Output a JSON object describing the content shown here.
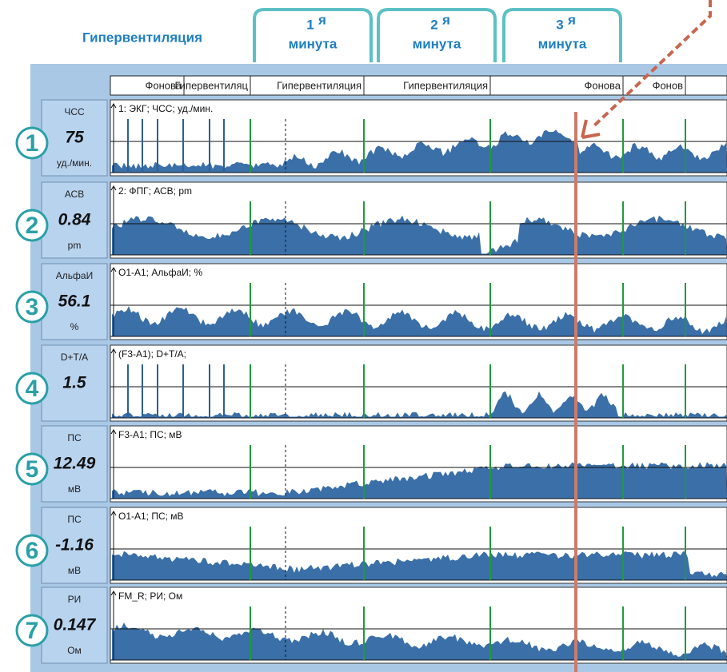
{
  "header": {
    "title": "Гипервентиляция"
  },
  "tabs": [
    {
      "number": "1",
      "suffix": "я",
      "label": "минута"
    },
    {
      "number": "2",
      "suffix": "я",
      "label": "минута"
    },
    {
      "number": "3",
      "suffix": "я",
      "label": "минута"
    }
  ],
  "columns": [
    "Фонова",
    "Гипервентиляц",
    "Гипервентиляция",
    "Гипервентиляция",
    "Фонова",
    "Фонов"
  ],
  "channels": [
    {
      "index": "1",
      "name": "ЧСС",
      "value": "75",
      "unit": "уд./мин.",
      "trace_label": "1: ЭКГ; ЧСС; уд./мин."
    },
    {
      "index": "2",
      "name": "АСВ",
      "value": "0.84",
      "unit": "pm",
      "trace_label": "2: ФПГ; АСВ; pm"
    },
    {
      "index": "3",
      "name": "АльфаИ",
      "value": "56.1",
      "unit": "%",
      "trace_label": "O1-A1; АльфаИ; %"
    },
    {
      "index": "4",
      "name": "D+T/A",
      "value": "1.5",
      "trace_label": "(F3-A1); D+T/A;"
    },
    {
      "index": "5",
      "name": "ПС",
      "value": "12.49",
      "unit": "мВ",
      "trace_label": "F3-A1; ПС; мВ"
    },
    {
      "index": "6",
      "name": "ПС",
      "value": "-1.16",
      "unit": "мВ",
      "trace_label": "O1-A1; ПС; мВ"
    },
    {
      "index": "7",
      "name": "РИ",
      "value": "0.147",
      "unit": "Ом",
      "trace_label": "FM_R; РИ; Ом"
    }
  ]
}
